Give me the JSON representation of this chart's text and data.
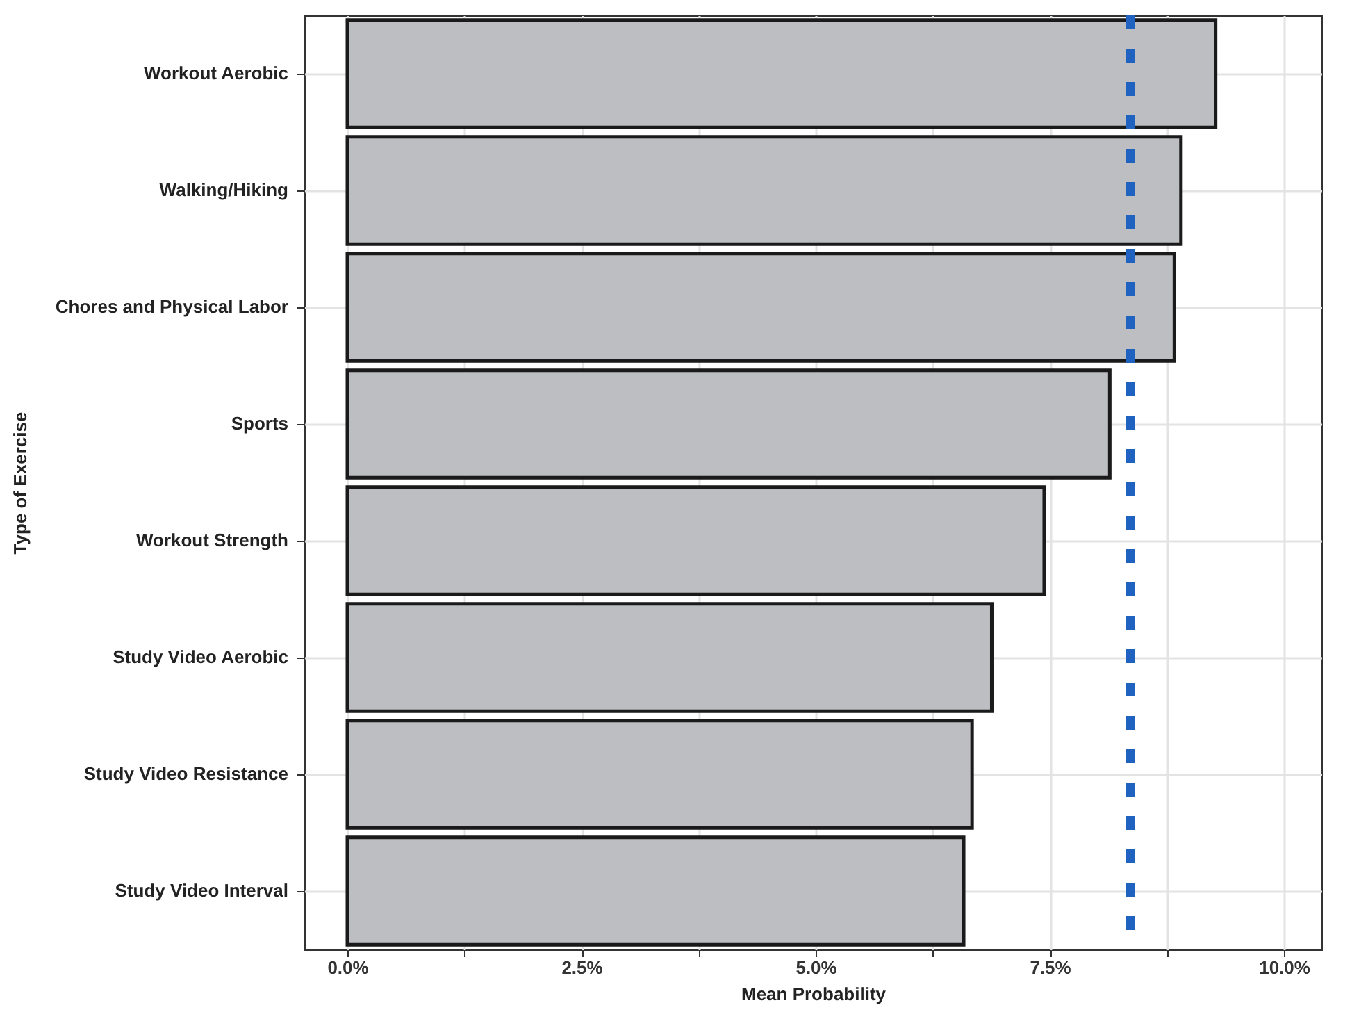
{
  "chart_data": {
    "type": "bar",
    "orientation": "horizontal",
    "xlabel": "Mean Probability",
    "ylabel": "Type of Exercise",
    "categories": [
      "Workout Aerobic",
      "Walking/Hiking",
      "Chores and Physical Labor",
      "Sports",
      "Workout Strength",
      "Study Video Aerobic",
      "Study Video Resistance",
      "Study Video Interval"
    ],
    "values": [
      9.27,
      8.9,
      8.83,
      8.14,
      7.44,
      6.88,
      6.67,
      6.58
    ],
    "color": "#bdbec2",
    "xlim": [
      -0.46,
      10.4
    ],
    "xticks": [
      {
        "value": 0,
        "label": "0.0%"
      },
      {
        "value": 1.25,
        "label": null
      },
      {
        "value": 2.5,
        "label": "2.5%"
      },
      {
        "value": 3.75,
        "label": null
      },
      {
        "value": 5,
        "label": "5.0%"
      },
      {
        "value": 6.25,
        "label": null
      },
      {
        "value": 7.5,
        "label": "7.5%"
      },
      {
        "value": 8.75,
        "label": null
      },
      {
        "value": 10,
        "label": "10.0%"
      }
    ],
    "ref_lines": [
      {
        "axis": "x",
        "value": 8.36,
        "color": "#1f62c0",
        "line_style": "dashed"
      }
    ],
    "grid": true
  }
}
